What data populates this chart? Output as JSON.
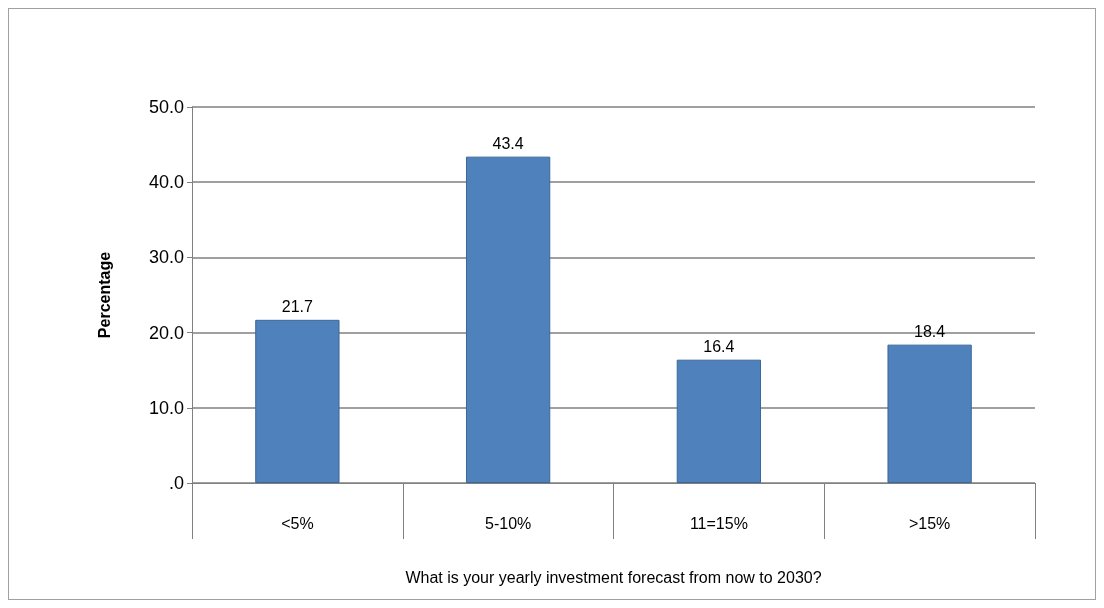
{
  "chart_data": {
    "type": "bar",
    "xlabel": "What is your yearly investment forecast from now to 2030?",
    "ylabel": "Percentage",
    "categories": [
      "<5%",
      "5-10%",
      "11=15%",
      ">15%"
    ],
    "values": [
      21.7,
      43.4,
      16.4,
      18.4
    ],
    "color": "#4f81bd",
    "ylim": [
      0,
      50
    ],
    "yticks": [
      {
        "value": 0,
        "label": ".0"
      },
      {
        "value": 10,
        "label": "10.0"
      },
      {
        "value": 20,
        "label": "20.0"
      },
      {
        "value": 30,
        "label": "30.0"
      },
      {
        "value": 40,
        "label": "40.0"
      },
      {
        "value": 50,
        "label": "50.0"
      }
    ],
    "grid": "y",
    "data_labels": true
  }
}
